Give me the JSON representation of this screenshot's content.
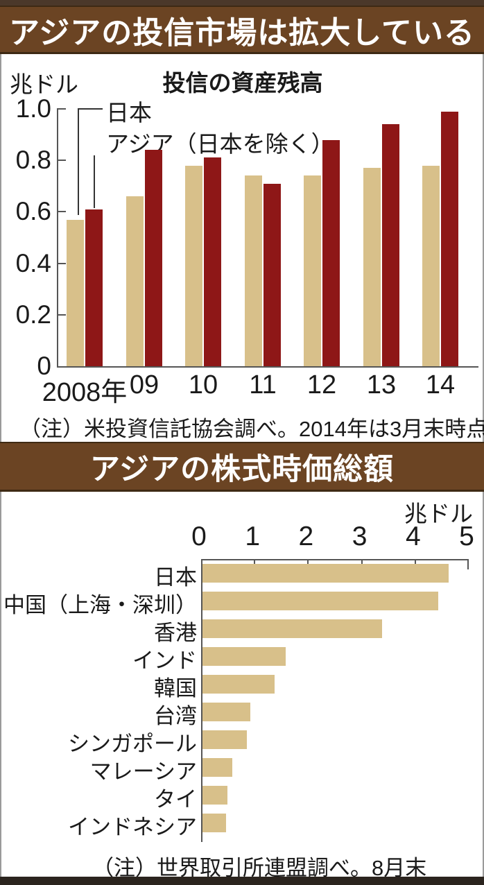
{
  "colors": {
    "header_bg": "#6b4423",
    "header_text": "#ffffff",
    "japan_bar": "#d8c08a",
    "asia_bar": "#8e1717",
    "axis": "#555555",
    "text": "#1a1a1a",
    "top_strip": "#4b382a",
    "bottom_strip": "#2b241e"
  },
  "sections": [
    {
      "header": "アジアの投信市場は拡大している",
      "unit_label": "兆ドル",
      "chart_title": "投信の資産残高",
      "note": "（注）米投資信託協会調べ。2014年は3月末時点"
    },
    {
      "header": "アジアの株式時価総額",
      "unit_label": "兆ドル",
      "note": "（注）世界取引所連盟調べ。8月末"
    }
  ],
  "chart_data": [
    {
      "type": "bar",
      "title": "投信の資産残高",
      "unit": "兆ドル",
      "categories": [
        "2008年",
        "09",
        "10",
        "11",
        "12",
        "13",
        "14"
      ],
      "series": [
        {
          "name": "日本",
          "color": "#d8c08a",
          "values": [
            0.57,
            0.66,
            0.78,
            0.74,
            0.74,
            0.77,
            0.78
          ]
        },
        {
          "name": "アジア（日本を除く）",
          "color": "#8e1717",
          "values": [
            0.61,
            0.84,
            0.81,
            0.71,
            0.88,
            0.94,
            0.99
          ]
        }
      ],
      "ylim": [
        0,
        1.0
      ],
      "yticks": [
        0,
        0.2,
        0.4,
        0.6,
        0.8,
        1.0
      ],
      "ytick_labels": [
        "0",
        "0.2",
        "0.4",
        "0.6",
        "0.8",
        "1.0"
      ],
      "grid": false,
      "legend_position": "top-left"
    },
    {
      "type": "bar-horizontal",
      "title": "アジアの株式時価総額",
      "unit": "兆ドル",
      "categories": [
        "日本",
        "中国（上海・深圳）",
        "香港",
        "インド",
        "韓国",
        "台湾",
        "シンガポール",
        "マレーシア",
        "タイ",
        "インドネシア"
      ],
      "values": [
        4.6,
        4.4,
        3.35,
        1.55,
        1.35,
        0.9,
        0.83,
        0.56,
        0.47,
        0.44
      ],
      "xlim": [
        0,
        5
      ],
      "xticks": [
        0,
        1,
        2,
        3,
        4,
        5
      ],
      "xtick_labels": [
        "0",
        "1",
        "2",
        "3",
        "4",
        "5"
      ],
      "bar_color": "#d8c08a",
      "grid": false
    }
  ]
}
